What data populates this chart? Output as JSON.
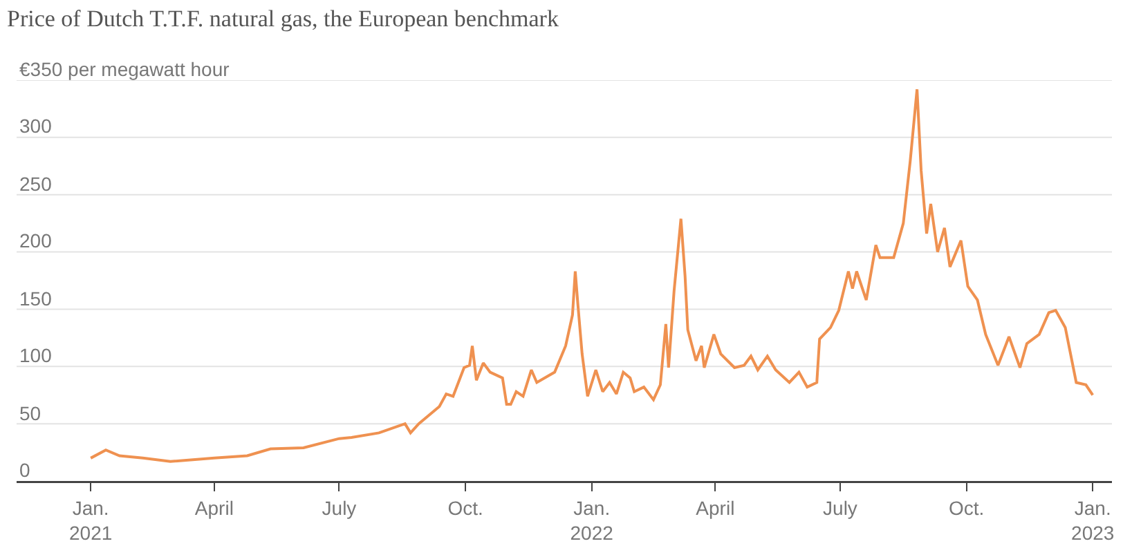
{
  "chart_data": {
    "type": "line",
    "title": "Price of Dutch T.T.F. natural gas, the European benchmark",
    "x": [
      "2021-01-01",
      "2021-01-12",
      "2021-01-22",
      "2021-02-08",
      "2021-02-28",
      "2021-04-01",
      "2021-04-25",
      "2021-05-12",
      "2021-06-05",
      "2021-07-01",
      "2021-07-10",
      "2021-07-30",
      "2021-08-18",
      "2021-08-22",
      "2021-08-28",
      "2021-09-12",
      "2021-09-17",
      "2021-09-22",
      "2021-09-30",
      "2021-10-04",
      "2021-10-06",
      "2021-10-09",
      "2021-10-14",
      "2021-10-19",
      "2021-10-28",
      "2021-10-31",
      "2021-11-03",
      "2021-11-07",
      "2021-11-12",
      "2021-11-18",
      "2021-11-22",
      "2021-12-05",
      "2021-12-13",
      "2021-12-18",
      "2021-12-20",
      "2021-12-22",
      "2021-12-25",
      "2021-12-29",
      "2022-01-04",
      "2022-01-09",
      "2022-01-14",
      "2022-01-19",
      "2022-01-24",
      "2022-01-29",
      "2022-02-01",
      "2022-02-08",
      "2022-02-15",
      "2022-02-20",
      "2022-02-24",
      "2022-02-26",
      "2022-03-02",
      "2022-03-07",
      "2022-03-10",
      "2022-03-12",
      "2022-03-18",
      "2022-03-22",
      "2022-03-24",
      "2022-03-31",
      "2022-04-05",
      "2022-04-15",
      "2022-04-22",
      "2022-04-27",
      "2022-05-02",
      "2022-05-09",
      "2022-05-15",
      "2022-05-25",
      "2022-06-01",
      "2022-06-07",
      "2022-06-14",
      "2022-06-16",
      "2022-06-24",
      "2022-06-30",
      "2022-07-07",
      "2022-07-10",
      "2022-07-13",
      "2022-07-20",
      "2022-07-27",
      "2022-07-30",
      "2022-08-09",
      "2022-08-16",
      "2022-08-21",
      "2022-08-26",
      "2022-08-29",
      "2022-09-02",
      "2022-09-05",
      "2022-09-10",
      "2022-09-15",
      "2022-09-19",
      "2022-09-27",
      "2022-10-02",
      "2022-10-09",
      "2022-10-15",
      "2022-10-24",
      "2022-11-01",
      "2022-11-09",
      "2022-11-14",
      "2022-11-23",
      "2022-11-30",
      "2022-12-05",
      "2022-12-12",
      "2022-12-20",
      "2022-12-27",
      "2023-01-01"
    ],
    "series": [
      {
        "color": "#ef9150",
        "values": [
          20,
          27,
          22,
          20,
          17,
          20,
          22,
          28,
          29,
          37,
          38,
          42,
          50,
          42,
          50,
          65,
          76,
          74,
          99,
          101,
          118,
          88,
          103,
          95,
          90,
          67,
          67,
          78,
          74,
          97,
          86,
          95,
          118,
          145,
          183,
          153,
          111,
          74,
          97,
          78,
          86,
          76,
          95,
          90,
          78,
          82,
          71,
          84,
          137,
          99,
          166,
          229,
          179,
          132,
          105,
          118,
          99,
          128,
          111,
          99,
          101,
          109,
          97,
          109,
          97,
          86,
          95,
          82,
          86,
          124,
          134,
          149,
          183,
          168,
          183,
          158,
          206,
          195,
          195,
          225,
          279,
          342,
          271,
          216,
          242,
          200,
          221,
          187,
          210,
          170,
          158,
          128,
          101,
          126,
          99,
          120,
          128,
          147,
          149,
          134,
          86,
          84,
          75
        ]
      }
    ],
    "xlim": [
      "2020-11-08",
      "2023-01-15"
    ],
    "xticks": [
      {
        "value": "2021-01-01",
        "label": "Jan.\n2021"
      },
      {
        "value": "2021-04-01",
        "label": "April"
      },
      {
        "value": "2021-07-01",
        "label": "July"
      },
      {
        "value": "2021-10-01",
        "label": "Oct."
      },
      {
        "value": "2022-01-01",
        "label": "Jan.\n2022"
      },
      {
        "value": "2022-04-01",
        "label": "April"
      },
      {
        "value": "2022-07-01",
        "label": "July"
      },
      {
        "value": "2022-10-01",
        "label": "Oct."
      },
      {
        "value": "2023-01-01",
        "label": "Jan.\n2023"
      }
    ],
    "ylim": [
      0,
      350
    ],
    "yticks": [
      0,
      50,
      100,
      150,
      200,
      250,
      300,
      {
        "value": 350,
        "label": "€350 per megawatt hour"
      }
    ],
    "grid": "y",
    "legend": false,
    "marker": "none",
    "line_style": "solid"
  }
}
